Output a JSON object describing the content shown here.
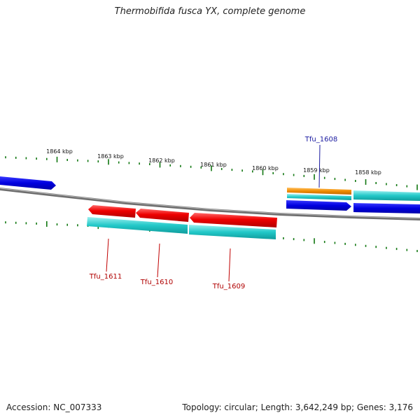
{
  "title": "Thermobifida fusca YX, complete genome",
  "footer": {
    "accession": "Accession: NC_007333",
    "summary": "Topology: circular; Length: 3,642,249 bp; Genes: 3,176"
  },
  "ticks": [
    "1864 kbp",
    "1863 kbp",
    "1862 kbp",
    "1861 kbp",
    "1860 kbp",
    "1859 kbp",
    "1858 kbp"
  ],
  "gene_labels": [
    {
      "name": "Tfu_1608",
      "color": "#1a1aa0"
    },
    {
      "name": "Tfu_1611",
      "color": "#b00000"
    },
    {
      "name": "Tfu_1610",
      "color": "#b00000"
    },
    {
      "name": "Tfu_1609",
      "color": "#b00000"
    }
  ],
  "colors": {
    "backbone": "#808080",
    "cds_forward": "#0000e0",
    "cds_reverse": "#ee0000",
    "gene": "#20c8c8",
    "highlight": "#f08c00",
    "tick": "#117711"
  }
}
